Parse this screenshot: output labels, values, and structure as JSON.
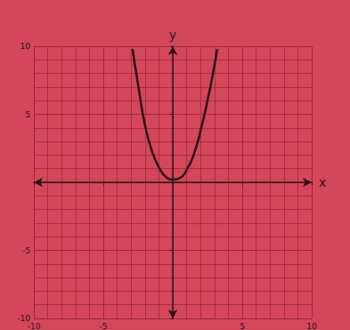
{
  "chart_data": {
    "type": "line",
    "xlabel": "x",
    "ylabel": "y",
    "x": [
      -2.9,
      -2.5,
      -2,
      -1.5,
      -1,
      -0.5,
      0,
      0.5,
      1,
      1.5,
      2,
      2.5,
      3,
      3.2
    ],
    "values": [
      9.8,
      7.2,
      4.2,
      2.3,
      1.1,
      0.4,
      0.2,
      0.3,
      0.9,
      2.0,
      3.8,
      6.0,
      8.6,
      9.8
    ],
    "color": "#2a1418",
    "marker": "none",
    "line_style": "solid",
    "xlim": [
      -10,
      10
    ],
    "xticks": [
      -10,
      -5,
      5,
      10
    ],
    "ylim": [
      -10,
      10
    ],
    "yticks": [
      -10,
      -5,
      5,
      10
    ],
    "grid": true
  }
}
